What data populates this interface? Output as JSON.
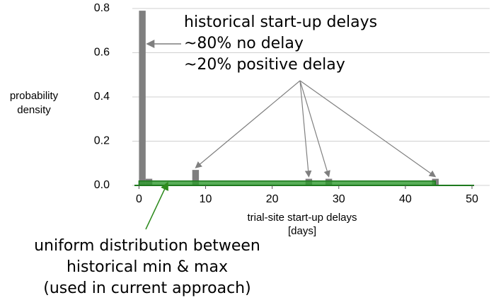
{
  "chart_data": {
    "type": "bar",
    "x_label": [
      "trial-site start-up delays",
      "[days]"
    ],
    "y_label": [
      "probability",
      "density"
    ],
    "x": [
      0.5,
      1.5,
      8.5,
      25.5,
      28.5,
      44.5
    ],
    "series": [
      {
        "color": "#7f7f7f",
        "values": [
          0.79,
          0.03,
          0.07,
          0.03,
          0.03,
          0.03
        ]
      }
    ],
    "uniform": {
      "color": "#2e9a2e",
      "x": [
        0,
        44.5
      ],
      "values": [
        0.02,
        0.02
      ]
    },
    "xlim": [
      -1,
      50
    ],
    "xticks": [
      0,
      10,
      20,
      30,
      40,
      50
    ],
    "ylim": [
      0,
      0.8
    ],
    "yticks": [
      {
        "value": 0,
        "label": "0.0"
      },
      0.2,
      0.4,
      0.6,
      0.8
    ],
    "grid": true,
    "annotations": {
      "gray": [
        "historical start-up delays",
        "~80% no delay",
        "~20% positive delay"
      ],
      "green": [
        "uniform distribution between",
        "historical min & max",
        "(used in current approach)"
      ]
    }
  }
}
